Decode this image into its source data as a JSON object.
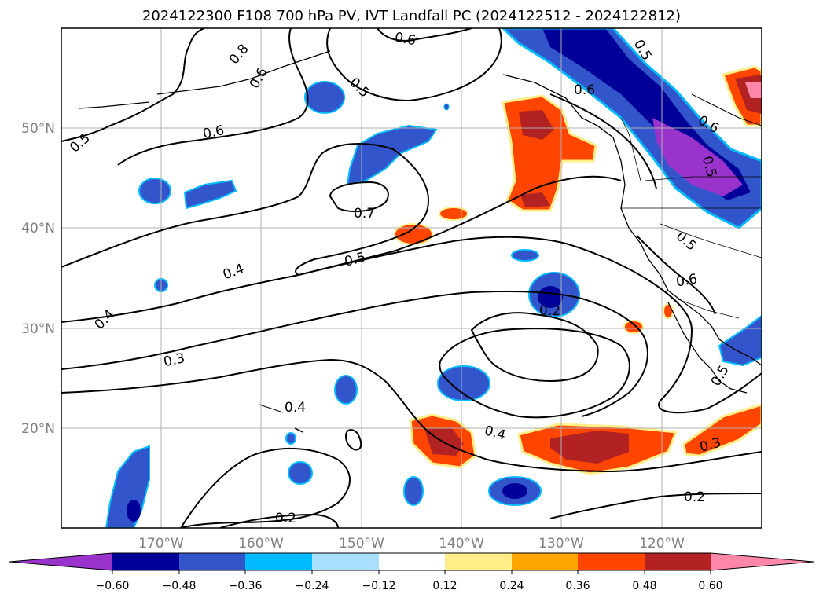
{
  "title": "2024122300 F108 700 hPa PV, IVT Landfall PC (2024122512 - 2024122812)",
  "map": {
    "projection": "equirectangular",
    "lon_range": [
      -180,
      -110
    ],
    "lat_range": [
      10,
      60
    ],
    "grid": true,
    "lat_labels": [
      "20°N",
      "30°N",
      "40°N",
      "50°N"
    ],
    "lon_labels": [
      "170°W",
      "160°W",
      "150°W",
      "140°W",
      "130°W",
      "120°W"
    ]
  },
  "contour_labels": [
    "0.8",
    "0.6",
    "0.5",
    "0.5",
    "0.6",
    "0.5",
    "0.6",
    "0.6",
    "0.7",
    "0.5",
    "0.4",
    "0.4",
    "0.5",
    "0.6",
    "0.3",
    "0.2",
    "0.5",
    "0.4",
    "0.4",
    "0.3",
    "0.2",
    "0.2",
    "0.6",
    "0.5"
  ],
  "colorbar": {
    "ticks": [
      "−0.60",
      "−0.48",
      "−0.36",
      "−0.24",
      "−0.12",
      "0.12",
      "0.24",
      "0.36",
      "0.48",
      "0.60"
    ],
    "colors": [
      "#9933CC",
      "#000099",
      "#3355CC",
      "#00BBFF",
      "#AAE0FF",
      "#FFFFFF",
      "#FFEE88",
      "#FFA500",
      "#FF4500",
      "#B22222",
      "#FF88AA"
    ],
    "extend": "both"
  },
  "shaded_field": {
    "positive_colors": [
      "#FFEE88",
      "#FFA500",
      "#FF4500",
      "#B22222",
      "#FF88AA"
    ],
    "negative_colors": [
      "#AAE0FF",
      "#00BBFF",
      "#3355CC",
      "#000099",
      "#9933CC"
    ]
  }
}
